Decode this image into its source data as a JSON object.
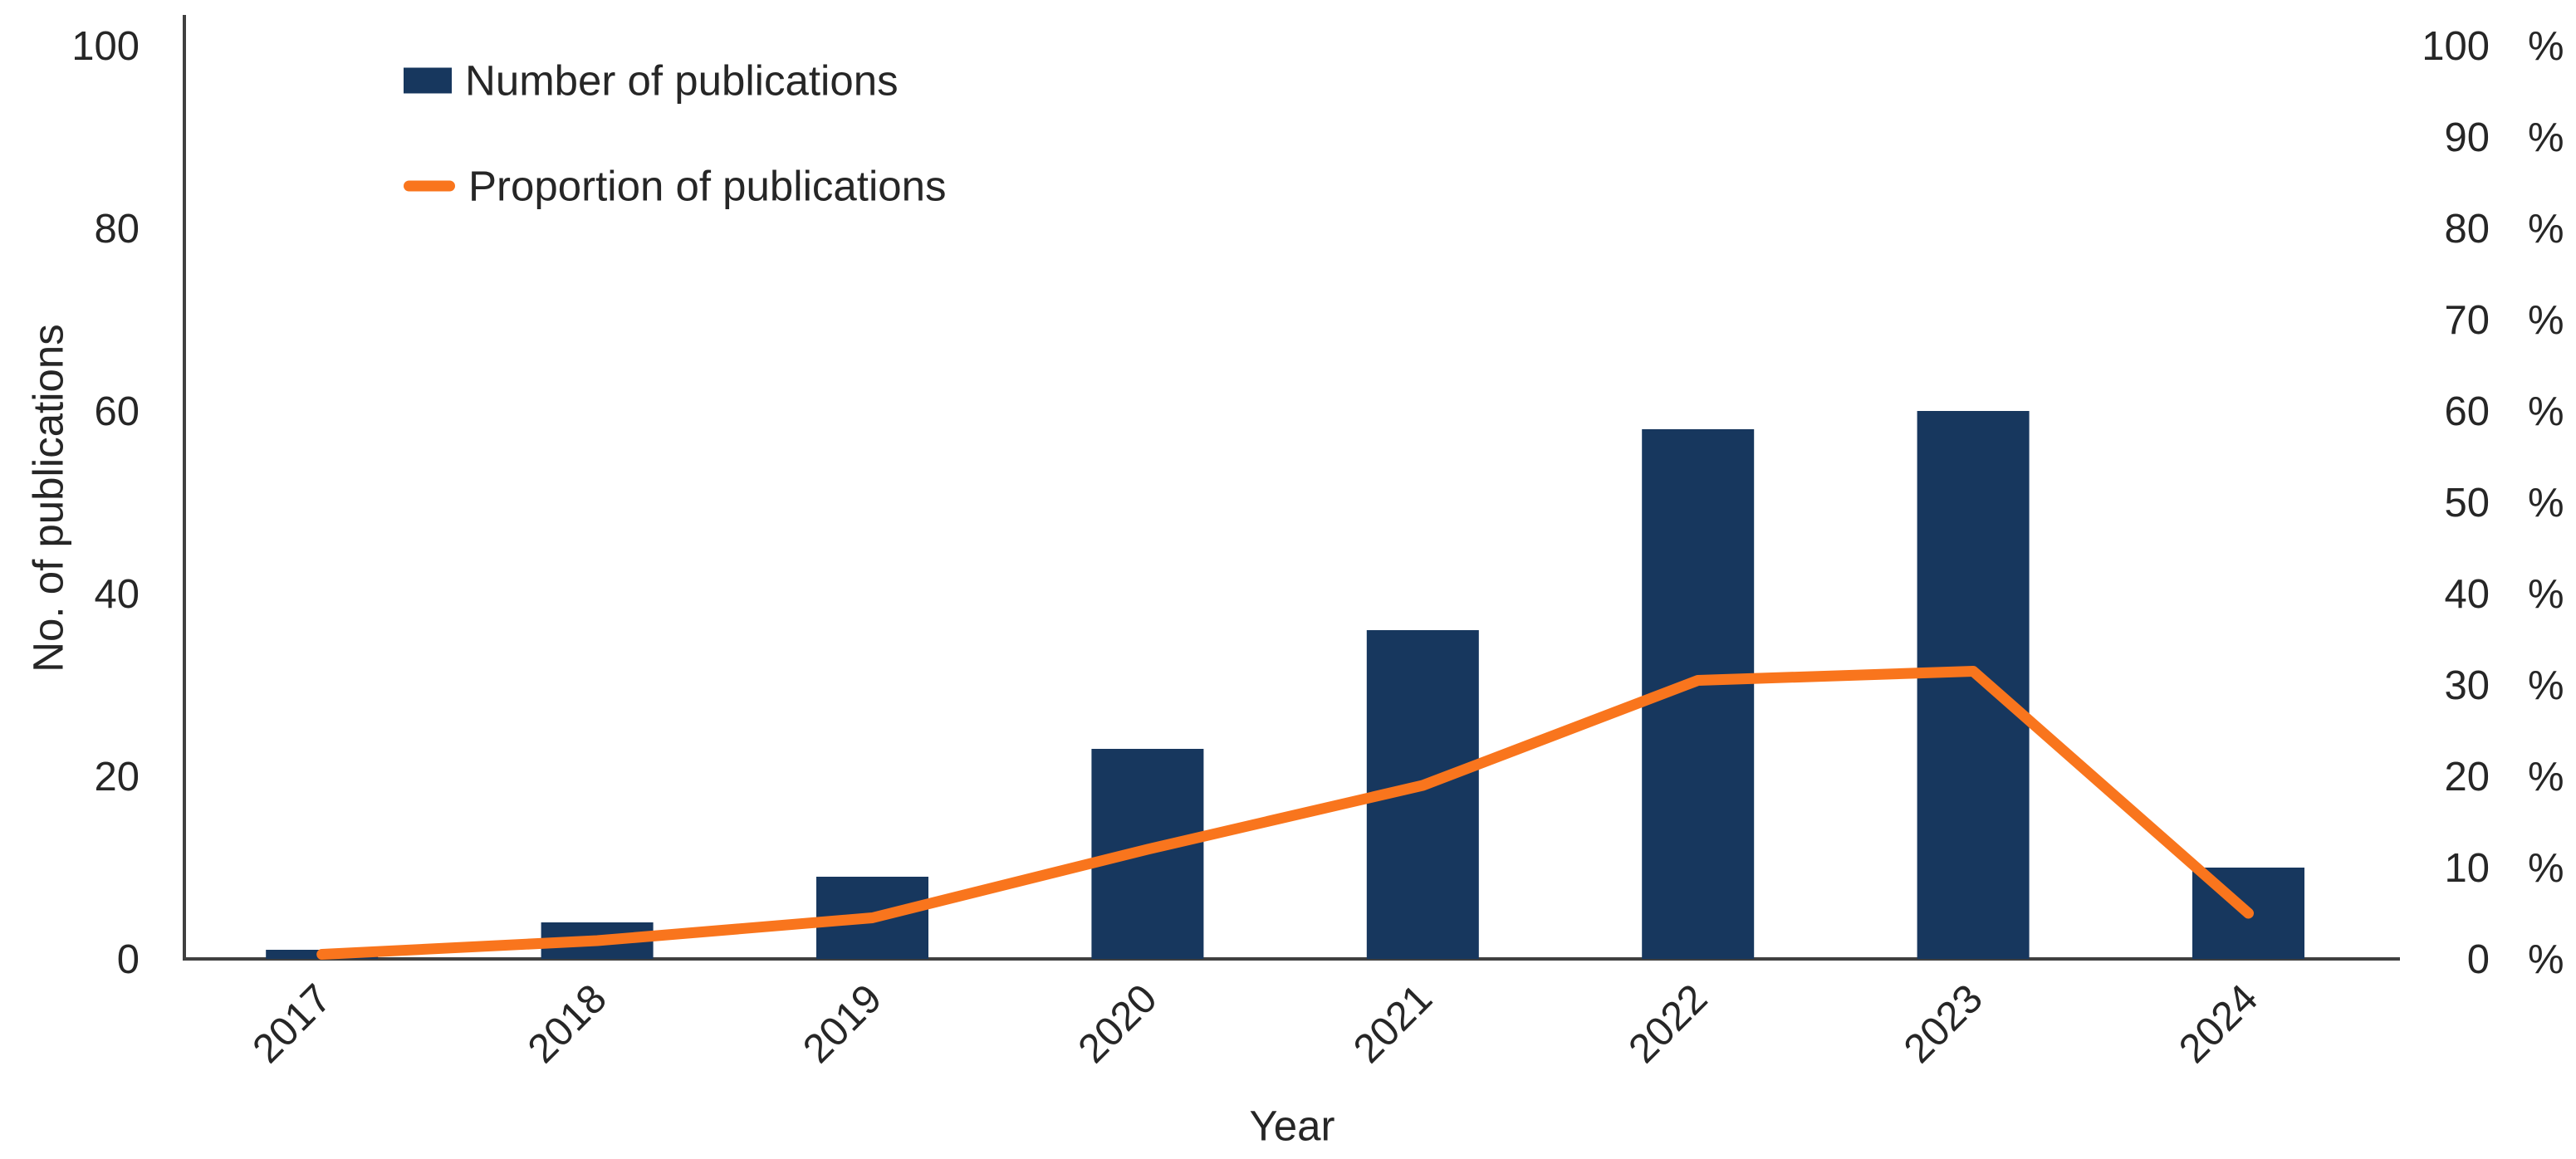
{
  "chart_data": {
    "type": "combo-bar-line",
    "title": "",
    "categories": [
      "2017",
      "2018",
      "2019",
      "2020",
      "2021",
      "2022",
      "2023",
      "2024"
    ],
    "series": [
      {
        "name": "Number of publications",
        "type": "bar",
        "axis": "left",
        "color": "#17375E",
        "values": [
          1,
          4,
          9,
          23,
          36,
          58,
          60,
          10
        ]
      },
      {
        "name": "Proportion of publications",
        "type": "line",
        "axis": "right",
        "color": "#F9751D",
        "values": [
          0.5,
          2,
          4.5,
          12,
          19,
          30.5,
          31.5,
          5
        ]
      }
    ],
    "x_axis": {
      "title": "Year"
    },
    "left_axis": {
      "title": "No. of publications",
      "min": 0,
      "max": 100,
      "ticks": [
        0,
        20,
        40,
        60,
        80,
        100
      ]
    },
    "right_axis": {
      "unit": "%",
      "min": 0,
      "max": 100,
      "ticks": [
        0,
        10,
        20,
        30,
        40,
        50,
        60,
        70,
        80,
        90,
        100
      ]
    },
    "legend": {
      "position": "top-left-inside"
    },
    "colors": {
      "axis_line": "#404040",
      "text": "#262626"
    },
    "grid": "off"
  }
}
